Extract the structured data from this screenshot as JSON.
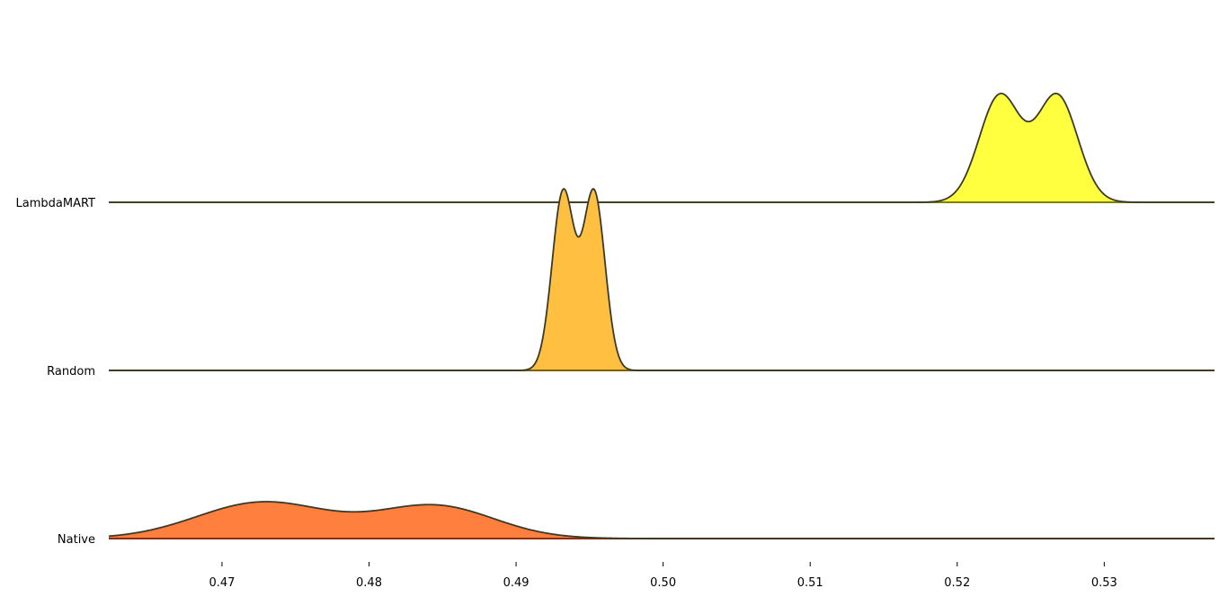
{
  "chart_data": {
    "type": "ridgeline",
    "x_ticks": [
      0.47,
      0.48,
      0.49,
      0.5,
      0.51,
      0.52,
      0.53
    ],
    "x_tick_labels": [
      "0.47",
      "0.48",
      "0.49",
      "0.50",
      "0.51",
      "0.52",
      "0.53"
    ],
    "xlim": [
      0.4623,
      0.5375
    ],
    "series": [
      {
        "name": "Native",
        "color": "#ff7f3f",
        "baseline_color": "#8b2e00",
        "components": [
          {
            "mu": 0.4728,
            "sigma": 0.0045,
            "w": 0.95
          },
          {
            "mu": 0.4845,
            "sigma": 0.004,
            "w": 0.85
          }
        ]
      },
      {
        "name": "Random",
        "color": "#ffbf40",
        "baseline_color": "#7f5f00",
        "components": [
          {
            "mu": 0.4932,
            "sigma": 0.00075,
            "w": 1.0
          },
          {
            "mu": 0.4953,
            "sigma": 0.00075,
            "w": 1.0
          }
        ]
      },
      {
        "name": "LambdaMART",
        "color": "#ffff40",
        "baseline_color": "#7f7f00",
        "components": [
          {
            "mu": 0.5229,
            "sigma": 0.0014,
            "w": 1.0
          },
          {
            "mu": 0.5268,
            "sigma": 0.0014,
            "w": 1.0
          }
        ]
      }
    ]
  }
}
